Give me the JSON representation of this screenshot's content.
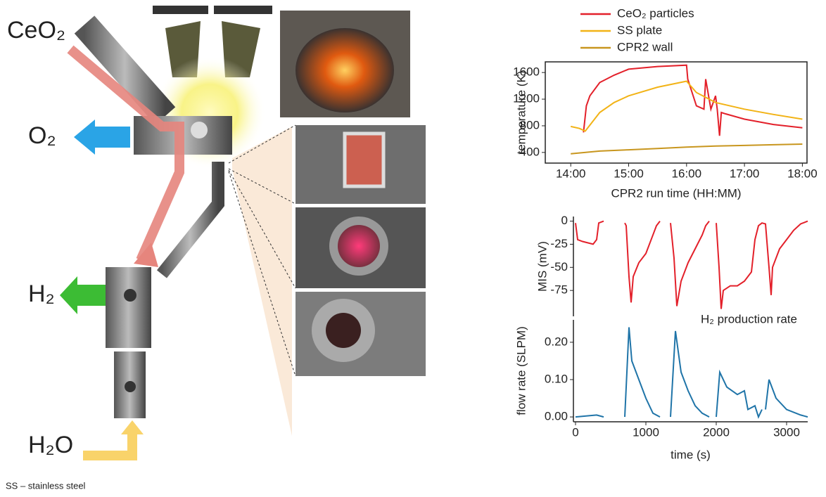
{
  "diagram": {
    "labels": [
      "CeO₂",
      "O₂",
      "H₂",
      "H₂O"
    ]
  },
  "footnote": "SS – stainless steel",
  "chart_data": [
    {
      "type": "line",
      "xlabel": "CPR2 run time (HH:MM)",
      "ylabel": "temperature (K)",
      "legend": true,
      "xlim": [
        13.56,
        18.08
      ],
      "ylim": [
        240,
        1760
      ],
      "xticks": [
        {
          "value": 14,
          "label": "14:00"
        },
        {
          "value": 15,
          "label": "15:00"
        },
        {
          "value": 16,
          "label": "16:00"
        },
        {
          "value": 17,
          "label": "17:00"
        },
        {
          "value": 18,
          "label": "18:00"
        }
      ],
      "yticks": [
        400,
        800,
        1200,
        1600
      ],
      "series": [
        {
          "name": "CeO₂ particles",
          "color": "#e3202a",
          "x": [
            14.22,
            14.27,
            14.33,
            14.5,
            14.75,
            15,
            15.5,
            16,
            16.02,
            16.17,
            16.3,
            16.33,
            16.42,
            16.5,
            16.53,
            16.57,
            16.6,
            16.67,
            17,
            17.5,
            18
          ],
          "values": [
            700,
            1100,
            1250,
            1450,
            1560,
            1650,
            1690,
            1710,
            1500,
            1100,
            1050,
            1500,
            1050,
            1250,
            1050,
            650,
            1000,
            980,
            900,
            820,
            770
          ]
        },
        {
          "name": "SS plate",
          "color": "#f2b316",
          "x": [
            14,
            14.15,
            14.25,
            14.5,
            14.75,
            15,
            15.5,
            16,
            16.17,
            16.5,
            17,
            17.5,
            18
          ],
          "values": [
            790,
            760,
            720,
            1000,
            1150,
            1250,
            1380,
            1470,
            1300,
            1150,
            1050,
            970,
            900
          ]
        },
        {
          "name": "CPR2 wall",
          "color": "#c8961e",
          "x": [
            14,
            14.5,
            15,
            15.5,
            16,
            16.5,
            17,
            17.5,
            18
          ],
          "values": [
            380,
            420,
            440,
            460,
            480,
            495,
            505,
            515,
            525
          ]
        }
      ]
    },
    {
      "type": "line",
      "ylabel": "MIS (mV)",
      "xlim": [
        -30,
        3300
      ],
      "ylim": [
        -103,
        5
      ],
      "yticks": [
        0,
        -25,
        -50,
        -75
      ],
      "series": [
        {
          "color": "#e3202a",
          "x": [
            0,
            30,
            100,
            250,
            300,
            330,
            400,
            450,
            700,
            720,
            760,
            790,
            820,
            900,
            1000,
            1100,
            1150,
            1200,
            1300,
            1350,
            1400,
            1440,
            1500,
            1600,
            1700,
            1800,
            1850,
            1900,
            1950,
            2000,
            2040,
            2070,
            2100,
            2200,
            2300,
            2400,
            2500,
            2550,
            2600,
            2650,
            2700,
            2750,
            2780,
            2800,
            2900,
            3000,
            3100,
            3200,
            3300
          ],
          "values": [
            -2,
            -20,
            -22,
            -25,
            -20,
            -2,
            0,
            null,
            -2,
            -5,
            -60,
            -88,
            -60,
            -45,
            -35,
            -15,
            -5,
            0,
            null,
            -2,
            -40,
            -92,
            -65,
            -45,
            -30,
            -15,
            -5,
            0,
            null,
            -2,
            -50,
            -95,
            -75,
            -70,
            -70,
            -65,
            -55,
            -20,
            -5,
            -2,
            -3,
            -50,
            -80,
            -50,
            -30,
            -20,
            -10,
            -3,
            0
          ]
        }
      ]
    },
    {
      "type": "line",
      "xlabel": "time (s)",
      "ylabel": "flow rate (SLPM)",
      "annotation": "H₂ production rate",
      "xlim": [
        -30,
        3300
      ],
      "ylim": [
        -0.013,
        0.26
      ],
      "xticks": [
        0,
        1000,
        2000,
        3000
      ],
      "yticks": [
        {
          "value": 0,
          "label": "0.00"
        },
        {
          "value": 0.1,
          "label": "0.10"
        },
        {
          "value": 0.2,
          "label": "0.20"
        }
      ],
      "series": [
        {
          "color": "#1f74a8",
          "x": [
            0,
            300,
            400,
            500,
            700,
            760,
            800,
            900,
            1000,
            1100,
            1200,
            1300,
            1350,
            1420,
            1500,
            1600,
            1700,
            1800,
            1900,
            1950,
            2000,
            2050,
            2150,
            2300,
            2400,
            2450,
            2550,
            2600,
            2650,
            2680,
            2700,
            2750,
            2850,
            3000,
            3200,
            3300
          ],
          "values": [
            0,
            0.005,
            0,
            null,
            0,
            0.24,
            0.15,
            0.1,
            0.05,
            0.01,
            0,
            null,
            0,
            0.23,
            0.12,
            0.07,
            0.03,
            0.01,
            0,
            null,
            0,
            0.12,
            0.08,
            0.06,
            0.07,
            0.02,
            0.03,
            0,
            0.02,
            null,
            0.02,
            0.1,
            0.05,
            0.02,
            0.005,
            0
          ]
        }
      ]
    }
  ]
}
